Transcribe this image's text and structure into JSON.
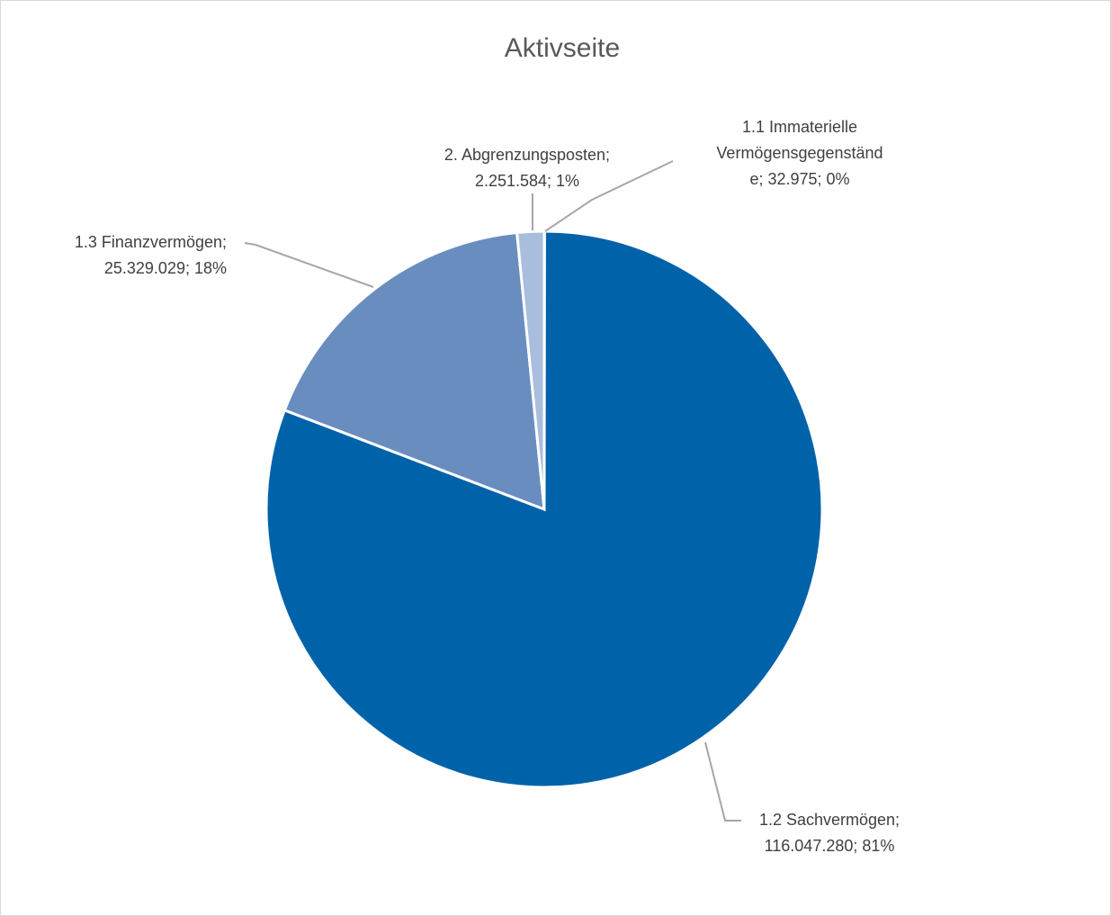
{
  "chart_data": {
    "type": "pie",
    "title": "Aktivseite",
    "slices": [
      {
        "label": "1.1 Immaterielle Vermögensgegenstände",
        "value": 32975,
        "percent": "0%",
        "color": "#A9BEDE",
        "label_lines": [
          "1.1 Immaterielle",
          "Vermögensgegenständ",
          "e; 32.975; 0%"
        ]
      },
      {
        "label": "1.2 Sachvermögen",
        "value": 116047280,
        "percent": "81%",
        "color": "#0062A9",
        "label_lines": [
          "1.2 Sachvermögen;",
          "116.047.280; 81%"
        ]
      },
      {
        "label": "1.3 Finanzvermögen",
        "value": 25329029,
        "percent": "18%",
        "color": "#6A8DC0",
        "label_lines": [
          "1.3 Finanzvermögen;",
          "25.329.029; 18%"
        ]
      },
      {
        "label": "2. Abgrenzungsposten",
        "value": 2251584,
        "percent": "1%",
        "color": "#A9BEDE",
        "label_lines": [
          "2. Abgrenzungsposten;",
          "2.251.584; 1%"
        ]
      }
    ],
    "legend": "none",
    "start_angle": "12 o'clock",
    "direction": "clockwise"
  }
}
